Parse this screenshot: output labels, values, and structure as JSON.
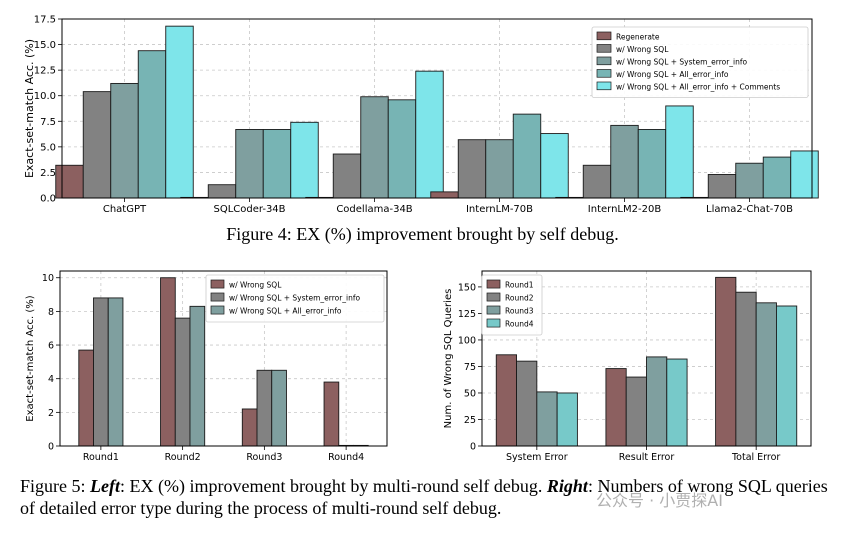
{
  "chart_data": [
    {
      "type": "bar",
      "ylabel": "Exact-set-match Acc. (%)",
      "ylim": [
        0,
        17.5
      ],
      "yticks": [
        0.0,
        2.5,
        5.0,
        7.5,
        10.0,
        12.5,
        15.0,
        17.5
      ],
      "yticklabels": [
        "0.0",
        "2.5",
        "5.0",
        "7.5",
        "10.0",
        "12.5",
        "15.0",
        "17.5"
      ],
      "grid": true,
      "legend_position": "top-right",
      "categories": [
        "ChatGPT",
        "SQLCoder-34B",
        "Codellama-34B",
        "InternLM-70B",
        "InternLM2-20B",
        "Llama2-Chat-70B"
      ],
      "series": [
        {
          "name": "Regenerate",
          "color": "#8c6060",
          "values": [
            3.2,
            0.0,
            0.0,
            0.6,
            0.0,
            0.0
          ]
        },
        {
          "name": "w/ Wrong SQL",
          "color": "#828282",
          "values": [
            10.4,
            1.3,
            4.3,
            5.7,
            3.2,
            2.3
          ]
        },
        {
          "name": "w/ Wrong SQL + System_error_info",
          "color": "#7f9f9f",
          "values": [
            11.2,
            6.7,
            9.9,
            5.7,
            7.1,
            3.4
          ]
        },
        {
          "name": "w/ Wrong SQL + All_error_info",
          "color": "#77b4b4",
          "values": [
            14.4,
            6.7,
            9.6,
            8.2,
            6.7,
            4.0
          ]
        },
        {
          "name": "w/ Wrong SQL + All_error_info + Comments",
          "color": "#7ee5ea",
          "values": [
            16.8,
            7.4,
            12.4,
            6.3,
            9.0,
            4.6
          ]
        }
      ]
    },
    {
      "type": "bar",
      "ylabel": "Exact-set-match Acc. (%)",
      "ylim": [
        0,
        10.4
      ],
      "yticks": [
        0,
        2,
        4,
        6,
        8,
        10
      ],
      "yticklabels": [
        "0",
        "2",
        "4",
        "6",
        "8",
        "10"
      ],
      "grid": true,
      "legend_position": "top-right",
      "categories": [
        "Round1",
        "Round2",
        "Round3",
        "Round4"
      ],
      "series": [
        {
          "name": "w/ Wrong SQL",
          "color": "#8c6060",
          "values": [
            5.7,
            10.0,
            2.2,
            3.8
          ]
        },
        {
          "name": "w/ Wrong SQL + System_error_info",
          "color": "#828282",
          "values": [
            8.8,
            7.6,
            4.5,
            0.0
          ]
        },
        {
          "name": "w/ Wrong SQL + All_error_info",
          "color": "#7f9f9f",
          "values": [
            8.8,
            8.3,
            4.5,
            0.0
          ]
        }
      ]
    },
    {
      "type": "bar",
      "ylabel": "Num. of Wrong SQL Queries",
      "ylim": [
        0,
        165
      ],
      "yticks": [
        0,
        25,
        50,
        75,
        100,
        125,
        150
      ],
      "yticklabels": [
        "0",
        "25",
        "50",
        "75",
        "100",
        "125",
        "150"
      ],
      "grid": true,
      "legend_position": "top-left",
      "categories": [
        "System Error",
        "Result Error",
        "Total Error"
      ],
      "series": [
        {
          "name": "Round1",
          "color": "#8c6060",
          "values": [
            86,
            73,
            159
          ]
        },
        {
          "name": "Round2",
          "color": "#828282",
          "values": [
            80,
            65,
            145
          ]
        },
        {
          "name": "Round3",
          "color": "#7f9f9f",
          "values": [
            51,
            84,
            135
          ]
        },
        {
          "name": "Round4",
          "color": "#77c9c9",
          "values": [
            50,
            82,
            132
          ]
        }
      ]
    }
  ],
  "captions": {
    "fig4": "Figure 4: EX (%) improvement brought by self debug.",
    "fig5_lead": "Figure 5: ",
    "fig5_left_label": "Left",
    "fig5_left_text": ": EX (%) improvement brought by multi-round self debug. ",
    "fig5_right_label": "Right",
    "fig5_right_text": ": Numbers of wrong SQL queries of detailed error type during the process of multi-round self debug."
  },
  "watermark": "公众号 · 小贾探AI"
}
